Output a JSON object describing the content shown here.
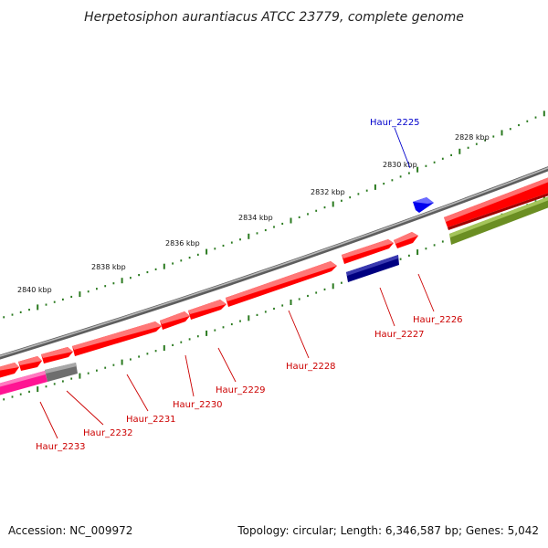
{
  "header": {
    "title": "Herpetosiphon aurantiacus ATCC 23779, complete genome"
  },
  "footer": {
    "accession": "Accession: NC_009972",
    "summary": "Topology: circular; Length: 6,346,587 bp; Genes: 5,042"
  },
  "scale": {
    "ticks": [
      {
        "label": "2840 kbp"
      },
      {
        "label": "2838 kbp"
      },
      {
        "label": "2836 kbp"
      },
      {
        "label": "2834 kbp"
      },
      {
        "label": "2832 kbp"
      },
      {
        "label": "2830 kbp"
      },
      {
        "label": "2828 kbp"
      }
    ]
  },
  "genes": [
    {
      "label": "Haur_2225",
      "color": "#0000cc",
      "strand": "forward"
    },
    {
      "label": "Haur_2226",
      "color": "#cc0000",
      "strand": "forward"
    },
    {
      "label": "Haur_2227",
      "color": "#cc0000",
      "strand": "reverse"
    },
    {
      "label": "Haur_2228",
      "color": "#cc0000",
      "strand": "forward"
    },
    {
      "label": "Haur_2229",
      "color": "#cc0000",
      "strand": "forward"
    },
    {
      "label": "Haur_2230",
      "color": "#cc0000",
      "strand": "forward"
    },
    {
      "label": "Haur_2231",
      "color": "#cc0000",
      "strand": "forward"
    },
    {
      "label": "Haur_2232",
      "color": "#cc0000",
      "strand": "forward"
    },
    {
      "label": "Haur_2233",
      "color": "#cc0000",
      "strand": "forward"
    }
  ],
  "colors": {
    "cds": "#ff0000",
    "forward_small": "#0000ff",
    "reverse_cds": "#000080",
    "olive_feature": "#6b8e23",
    "magenta_feature": "#ff1493",
    "grey_feature": "#707070",
    "backbone": "#808080",
    "ticks": "#2a7a1f"
  }
}
